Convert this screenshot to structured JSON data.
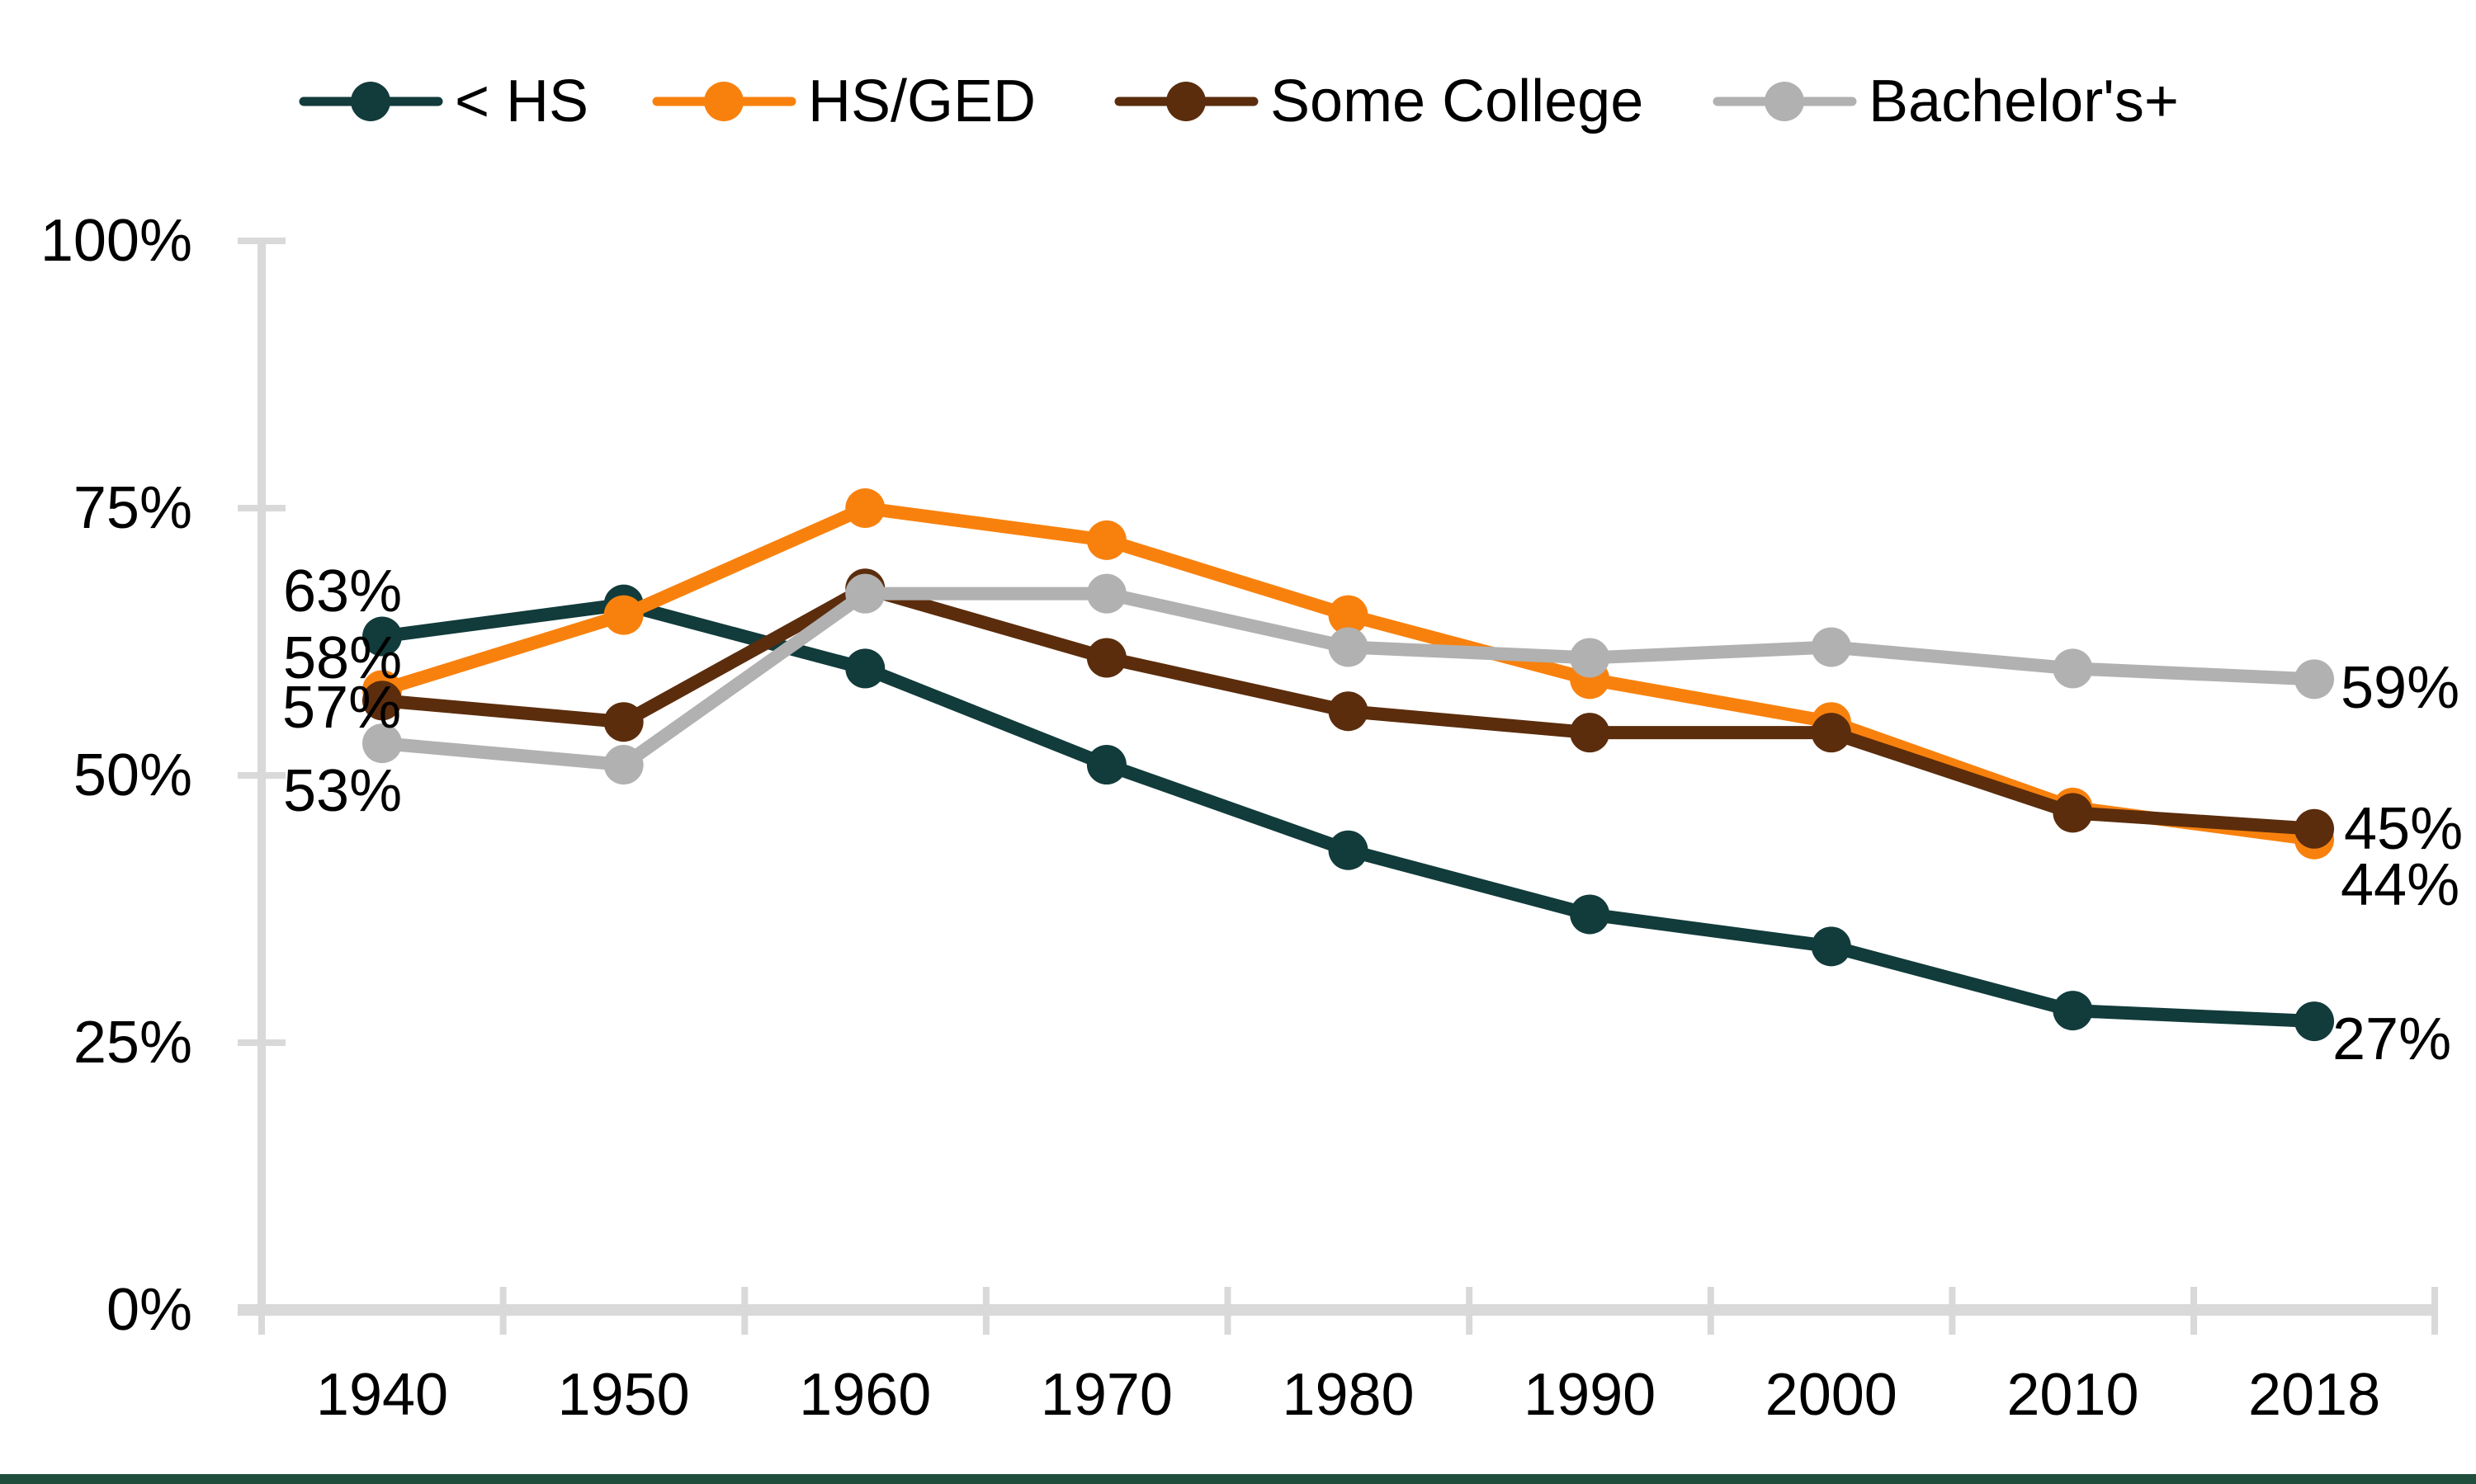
{
  "legend": {
    "items": [
      {
        "label": "< HS",
        "color": "#123B3B"
      },
      {
        "label": "HS/GED",
        "color": "#F8810D"
      },
      {
        "label": "Some College",
        "color": "#5B2D0D"
      },
      {
        "label": "Bachelor's+",
        "color": "#B1B1B1"
      }
    ]
  },
  "axes": {
    "x_labels": [
      "1940",
      "1950",
      "1960",
      "1970",
      "1980",
      "1990",
      "2000",
      "2010",
      "2018"
    ],
    "y_labels": [
      "0%",
      "25%",
      "50%",
      "75%",
      "100%"
    ],
    "axis_color": "#D9D9D9",
    "text_color": "#000000"
  },
  "chart_data": {
    "type": "line",
    "x": [
      1940,
      1950,
      1960,
      1970,
      1980,
      1990,
      2000,
      2010,
      2018
    ],
    "series": [
      {
        "name": "< HS",
        "color": "#123B3B",
        "values": [
          63,
          66,
          60,
          51,
          43,
          37,
          34,
          28,
          27
        ]
      },
      {
        "name": "HS/GED",
        "color": "#F8810D",
        "values": [
          58,
          65,
          75,
          72,
          65,
          59,
          55,
          47,
          44
        ]
      },
      {
        "name": "Some College",
        "color": "#5B2D0D",
        "values": [
          57,
          55,
          67.5,
          61,
          56,
          54,
          54,
          46.5,
          45
        ]
      },
      {
        "name": "Bachelor's+",
        "color": "#B1B1B1",
        "values": [
          53,
          51,
          67,
          67,
          62,
          61,
          62,
          60,
          59
        ]
      }
    ],
    "ylim": [
      0,
      100
    ],
    "y_tick_step": 25,
    "grid": false,
    "legend_position": "top",
    "marker": "circle",
    "annotations": {
      "left": [
        {
          "text": "63%",
          "series": "< HS"
        },
        {
          "text": "58%",
          "series": "HS/GED"
        },
        {
          "text": "57%",
          "series": "Some College"
        },
        {
          "text": "53%",
          "series": "Bachelor's+"
        }
      ],
      "right": [
        {
          "text": "59%",
          "series": "Bachelor's+"
        },
        {
          "text": "45%",
          "series": "Some College"
        },
        {
          "text": "44%",
          "series": "HS/GED"
        },
        {
          "text": "27%",
          "series": "< HS"
        }
      ]
    }
  },
  "footer": {
    "bar_color": "#1F4E3C"
  }
}
